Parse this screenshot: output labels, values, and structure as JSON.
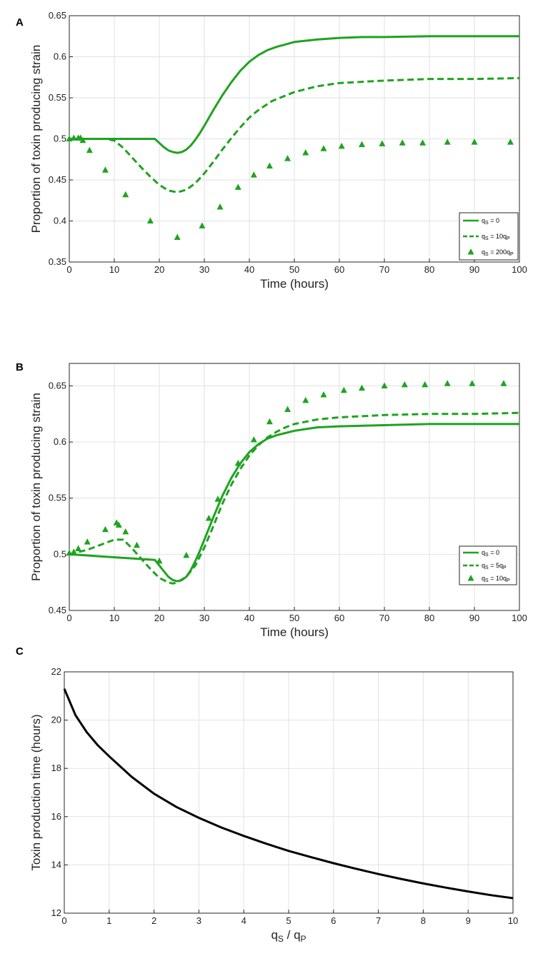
{
  "chart_data": [
    {
      "panel": "A",
      "type": "line",
      "title": "",
      "xlabel": "Time (hours)",
      "ylabel": "Proportion of toxin producing strain",
      "xlim": [
        0,
        100
      ],
      "ylim": [
        0.35,
        0.65
      ],
      "xticks": [
        0,
        10,
        20,
        30,
        40,
        50,
        60,
        70,
        80,
        90,
        100
      ],
      "yticks": [
        0.35,
        0.4,
        0.45,
        0.5,
        0.55,
        0.6,
        0.65
      ],
      "grid": true,
      "legend_position": "bottom-right",
      "color": "#1fa31f",
      "series": [
        {
          "name": "q_S = 0",
          "legend": {
            "base": "q",
            "sub": "S",
            "rest": " = 0",
            "sub2": ""
          },
          "style": "solid",
          "x": [
            0,
            19,
            20,
            21,
            22,
            23,
            24,
            25,
            26,
            27,
            28,
            29,
            30,
            32,
            34,
            36,
            38,
            40,
            42,
            44,
            46,
            48,
            50,
            55,
            60,
            65,
            70,
            80,
            90,
            100
          ],
          "y": [
            0.5,
            0.5,
            0.495,
            0.49,
            0.486,
            0.484,
            0.483,
            0.484,
            0.487,
            0.492,
            0.499,
            0.507,
            0.516,
            0.535,
            0.553,
            0.569,
            0.583,
            0.594,
            0.602,
            0.608,
            0.612,
            0.615,
            0.618,
            0.621,
            0.623,
            0.624,
            0.624,
            0.625,
            0.625,
            0.625
          ]
        },
        {
          "name": "q_S = 10q_P",
          "legend": {
            "base": "q",
            "sub": "S",
            "rest": " = 10q",
            "sub2": "P"
          },
          "style": "dashed",
          "x": [
            0,
            8,
            10,
            12,
            14,
            16,
            18,
            20,
            22,
            24,
            26,
            28,
            30,
            32,
            34,
            36,
            38,
            40,
            42,
            45,
            50,
            55,
            60,
            70,
            80,
            90,
            100
          ],
          "y": [
            0.5,
            0.5,
            0.498,
            0.489,
            0.477,
            0.465,
            0.454,
            0.444,
            0.437,
            0.435,
            0.438,
            0.446,
            0.458,
            0.472,
            0.487,
            0.501,
            0.514,
            0.526,
            0.535,
            0.546,
            0.557,
            0.564,
            0.568,
            0.571,
            0.573,
            0.573,
            0.574
          ]
        },
        {
          "name": "q_S = 200q_P",
          "legend": {
            "base": "q",
            "sub": "S",
            "rest": " = 200q",
            "sub2": "P"
          },
          "style": "triangles",
          "x": [
            0,
            1,
            2,
            2.5,
            3,
            4.5,
            8,
            12.5,
            18,
            24,
            29.5,
            33.5,
            37.5,
            41,
            44.5,
            48.5,
            52.5,
            56.5,
            60.5,
            65,
            69.5,
            74,
            78.5,
            84,
            90,
            98
          ],
          "y": [
            0.5,
            0.501,
            0.501,
            0.501,
            0.498,
            0.486,
            0.462,
            0.432,
            0.4,
            0.38,
            0.394,
            0.417,
            0.441,
            0.456,
            0.467,
            0.476,
            0.483,
            0.488,
            0.491,
            0.493,
            0.494,
            0.495,
            0.495,
            0.496,
            0.496,
            0.496
          ]
        }
      ]
    },
    {
      "panel": "B",
      "type": "line",
      "title": "",
      "xlabel": "Time (hours)",
      "ylabel": "Proportion of toxin producing strain",
      "xlim": [
        0,
        100
      ],
      "ylim": [
        0.45,
        0.67
      ],
      "xticks": [
        0,
        10,
        20,
        30,
        40,
        50,
        60,
        70,
        80,
        90,
        100
      ],
      "yticks": [
        0.45,
        0.5,
        0.55,
        0.6,
        0.65
      ],
      "grid": true,
      "legend_position": "bottom-right",
      "color": "#1fa31f",
      "series": [
        {
          "name": "q_S = 0",
          "legend": {
            "base": "q",
            "sub": "S",
            "rest": " = 0",
            "sub2": ""
          },
          "style": "solid",
          "x": [
            0,
            19,
            20,
            21,
            22,
            23,
            24,
            25,
            26,
            27,
            28,
            29,
            30,
            32,
            34,
            36,
            38,
            40,
            42,
            44,
            46,
            48,
            50,
            55,
            60,
            70,
            80,
            90,
            100
          ],
          "y": [
            0.5,
            0.495,
            0.49,
            0.485,
            0.48,
            0.477,
            0.476,
            0.477,
            0.48,
            0.486,
            0.494,
            0.503,
            0.513,
            0.533,
            0.552,
            0.568,
            0.581,
            0.591,
            0.598,
            0.603,
            0.606,
            0.608,
            0.61,
            0.613,
            0.614,
            0.615,
            0.616,
            0.616,
            0.616
          ]
        },
        {
          "name": "q_S = 5q_P",
          "legend": {
            "base": "q",
            "sub": "S",
            "rest": " = 5q",
            "sub2": "P"
          },
          "style": "dashed",
          "x": [
            0,
            2,
            4,
            6,
            8,
            10,
            12,
            14,
            16,
            18,
            20,
            22,
            23,
            24,
            26,
            28,
            30,
            32,
            34,
            36,
            38,
            40,
            42,
            44,
            46,
            48,
            50,
            55,
            60,
            70,
            80,
            90,
            100
          ],
          "y": [
            0.5,
            0.502,
            0.504,
            0.507,
            0.51,
            0.513,
            0.513,
            0.505,
            0.496,
            0.487,
            0.479,
            0.475,
            0.474,
            0.475,
            0.48,
            0.49,
            0.506,
            0.525,
            0.545,
            0.562,
            0.576,
            0.588,
            0.597,
            0.604,
            0.609,
            0.613,
            0.616,
            0.62,
            0.622,
            0.624,
            0.625,
            0.625,
            0.626
          ]
        },
        {
          "name": "q_S = 10q_P",
          "legend": {
            "base": "q",
            "sub": "S",
            "rest": " = 10q",
            "sub2": "P"
          },
          "style": "triangles",
          "x": [
            0,
            1,
            2,
            4,
            8,
            10.5,
            11,
            12.5,
            15,
            20,
            26,
            31,
            33,
            37.5,
            41,
            44.5,
            48.5,
            52.5,
            56.5,
            61,
            65,
            70,
            74.5,
            79,
            84,
            89.5,
            96.5
          ],
          "y": [
            0.501,
            0.502,
            0.505,
            0.511,
            0.522,
            0.528,
            0.526,
            0.52,
            0.508,
            0.494,
            0.499,
            0.532,
            0.549,
            0.581,
            0.602,
            0.618,
            0.629,
            0.637,
            0.642,
            0.646,
            0.648,
            0.65,
            0.651,
            0.651,
            0.652,
            0.652,
            0.652
          ]
        }
      ]
    },
    {
      "panel": "C",
      "type": "line",
      "title": "",
      "xlabel": "qS / qP",
      "xlabel_parts": {
        "a": "q",
        "a_sub": "S",
        "mid": " / q",
        "b_sub": "P"
      },
      "ylabel": "Toxin production time (hours)",
      "xlim": [
        0,
        10
      ],
      "ylim": [
        12,
        22
      ],
      "xticks": [
        0,
        1,
        2,
        3,
        4,
        5,
        6,
        7,
        8,
        9,
        10
      ],
      "yticks": [
        12,
        14,
        16,
        18,
        20,
        22
      ],
      "grid": true,
      "color": "#000000",
      "series": [
        {
          "name": "toxin production time",
          "style": "solid",
          "x": [
            0,
            0.25,
            0.5,
            0.75,
            1,
            1.5,
            2,
            2.5,
            3,
            3.5,
            4,
            4.5,
            5,
            5.5,
            6,
            6.5,
            7,
            7.5,
            8,
            8.5,
            9,
            9.5,
            10
          ],
          "y": [
            21.3,
            20.2,
            19.5,
            18.95,
            18.5,
            17.65,
            16.95,
            16.4,
            15.95,
            15.55,
            15.2,
            14.88,
            14.58,
            14.32,
            14.07,
            13.84,
            13.62,
            13.42,
            13.23,
            13.06,
            12.9,
            12.75,
            12.62
          ]
        }
      ]
    }
  ]
}
